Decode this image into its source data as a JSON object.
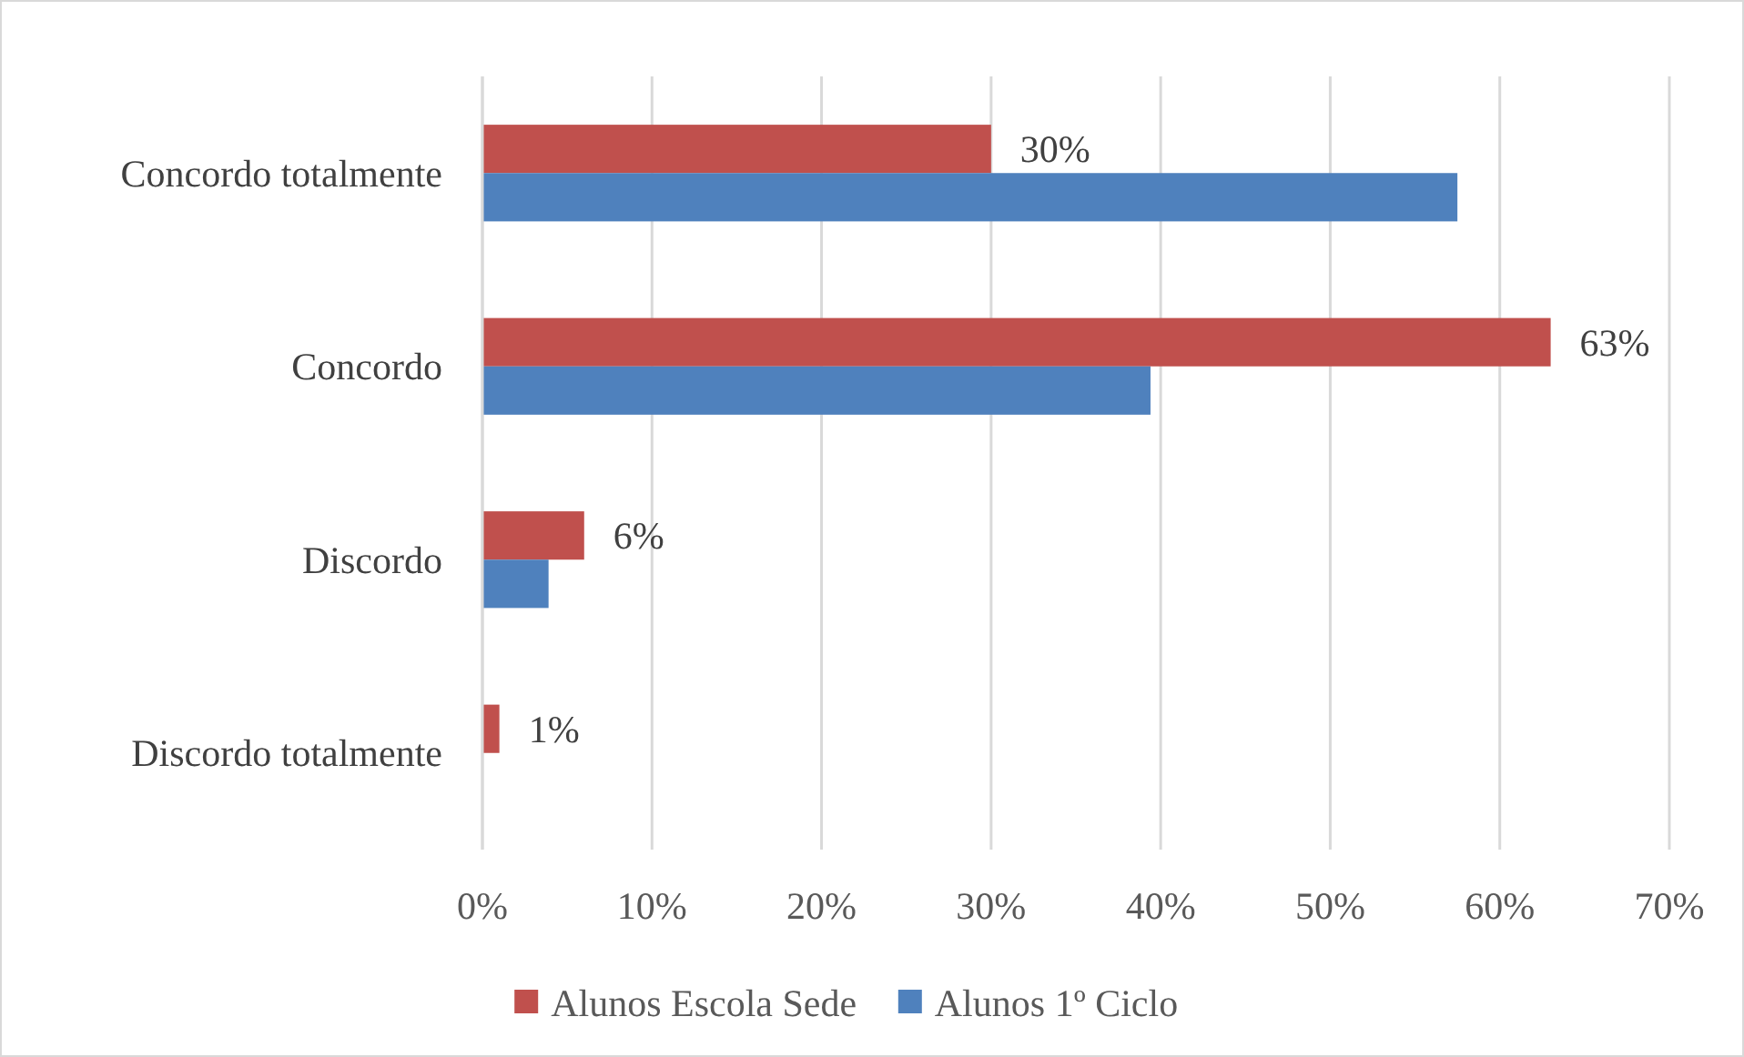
{
  "chart_data": {
    "type": "bar",
    "orientation": "horizontal",
    "categories": [
      "Concordo totalmente",
      "Concordo",
      "Discordo",
      "Discordo totalmente"
    ],
    "series": [
      {
        "name": "Alunos Escola Sede",
        "color": "#c0504d",
        "values": [
          30,
          63,
          6,
          1
        ],
        "value_labels": [
          "30%",
          "63%",
          "6%",
          "1%"
        ]
      },
      {
        "name": "Alunos 1º Ciclo",
        "color": "#4f81bd",
        "values": [
          57.5,
          39.4,
          3.9,
          0
        ]
      }
    ],
    "xlim": [
      0,
      70
    ],
    "xticks": [
      {
        "value": 0,
        "label": "0%"
      },
      {
        "value": 10,
        "label": "10%"
      },
      {
        "value": 20,
        "label": "20%"
      },
      {
        "value": 30,
        "label": "30%"
      },
      {
        "value": 40,
        "label": "40%"
      },
      {
        "value": 50,
        "label": "50%"
      },
      {
        "value": 60,
        "label": "60%"
      },
      {
        "value": 70,
        "label": "70%"
      }
    ],
    "grid": "x",
    "legend": "bottom"
  }
}
